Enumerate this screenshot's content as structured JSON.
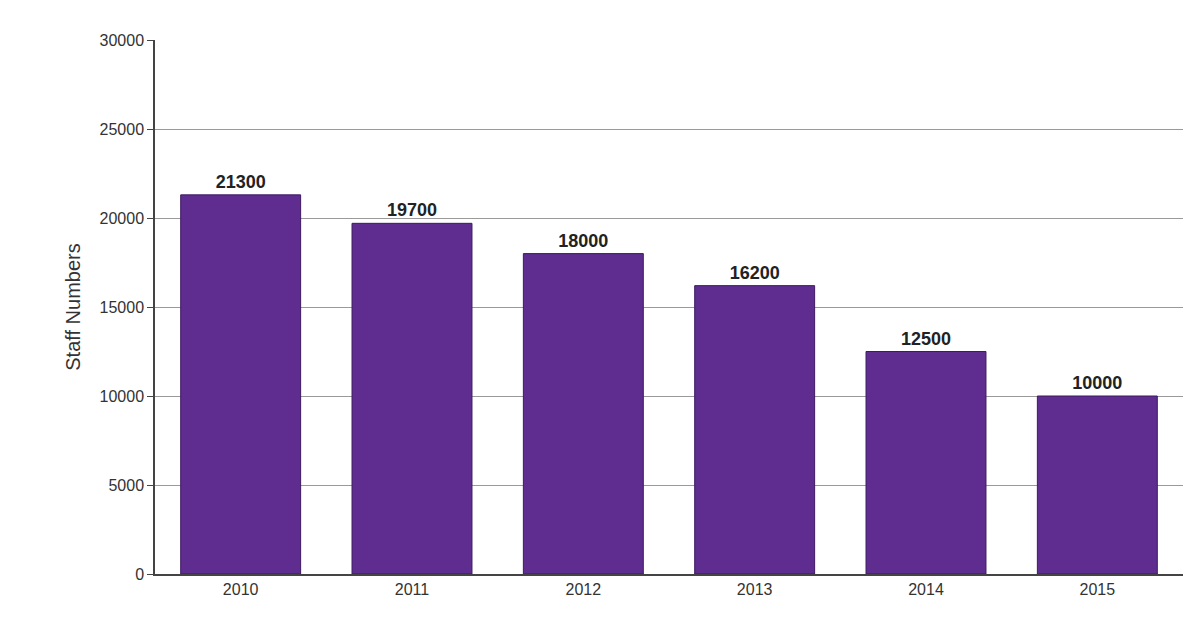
{
  "chart_data": {
    "type": "bar",
    "categories": [
      "2010",
      "2011",
      "2012",
      "2013",
      "2014",
      "2015"
    ],
    "values": [
      21300,
      19700,
      18000,
      16200,
      12500,
      10000
    ],
    "color": "#5e2d8f",
    "y_label": "Staff Numbers",
    "ylim": [
      0,
      30000
    ],
    "yticks": [
      0,
      5000,
      10000,
      15000,
      20000,
      25000,
      30000
    ],
    "grid": true,
    "data_labels": true
  }
}
